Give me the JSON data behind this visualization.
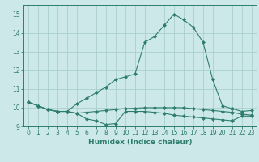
{
  "xlabel": "Humidex (Indice chaleur)",
  "x_values": [
    0,
    1,
    2,
    3,
    4,
    5,
    6,
    7,
    8,
    9,
    10,
    11,
    12,
    13,
    14,
    15,
    16,
    17,
    18,
    19,
    20,
    21,
    22,
    23
  ],
  "line1_y": [
    10.3,
    10.1,
    9.9,
    9.8,
    9.8,
    9.7,
    9.4,
    9.3,
    9.1,
    9.15,
    9.8,
    9.8,
    9.8,
    9.75,
    9.7,
    9.6,
    9.55,
    9.5,
    9.45,
    9.4,
    9.35,
    9.3,
    9.55,
    9.55
  ],
  "line2_y": [
    10.3,
    10.1,
    9.9,
    9.8,
    9.8,
    10.2,
    10.5,
    10.8,
    11.1,
    11.5,
    11.65,
    11.8,
    13.5,
    13.8,
    14.4,
    15.0,
    14.7,
    14.3,
    13.5,
    11.5,
    10.1,
    9.95,
    9.8,
    9.85
  ],
  "line3_y": [
    10.3,
    10.1,
    9.9,
    9.8,
    9.8,
    9.7,
    9.75,
    9.8,
    9.85,
    9.9,
    9.95,
    9.97,
    10.0,
    10.0,
    10.0,
    10.0,
    10.0,
    9.95,
    9.9,
    9.85,
    9.8,
    9.75,
    9.65,
    9.6
  ],
  "line_color": "#2e7d6e",
  "bg_color": "#cce8e8",
  "grid_color": "#aacece",
  "ylim": [
    9.0,
    15.5
  ],
  "xlim": [
    -0.5,
    23.5
  ],
  "yticks": [
    9,
    10,
    11,
    12,
    13,
    14,
    15
  ],
  "xticks": [
    0,
    1,
    2,
    3,
    4,
    5,
    6,
    7,
    8,
    9,
    10,
    11,
    12,
    13,
    14,
    15,
    16,
    17,
    18,
    19,
    20,
    21,
    22,
    23
  ],
  "marker": "D",
  "markersize": 2.0,
  "linewidth": 0.8,
  "tick_fontsize": 5.5,
  "xlabel_fontsize": 6.5
}
